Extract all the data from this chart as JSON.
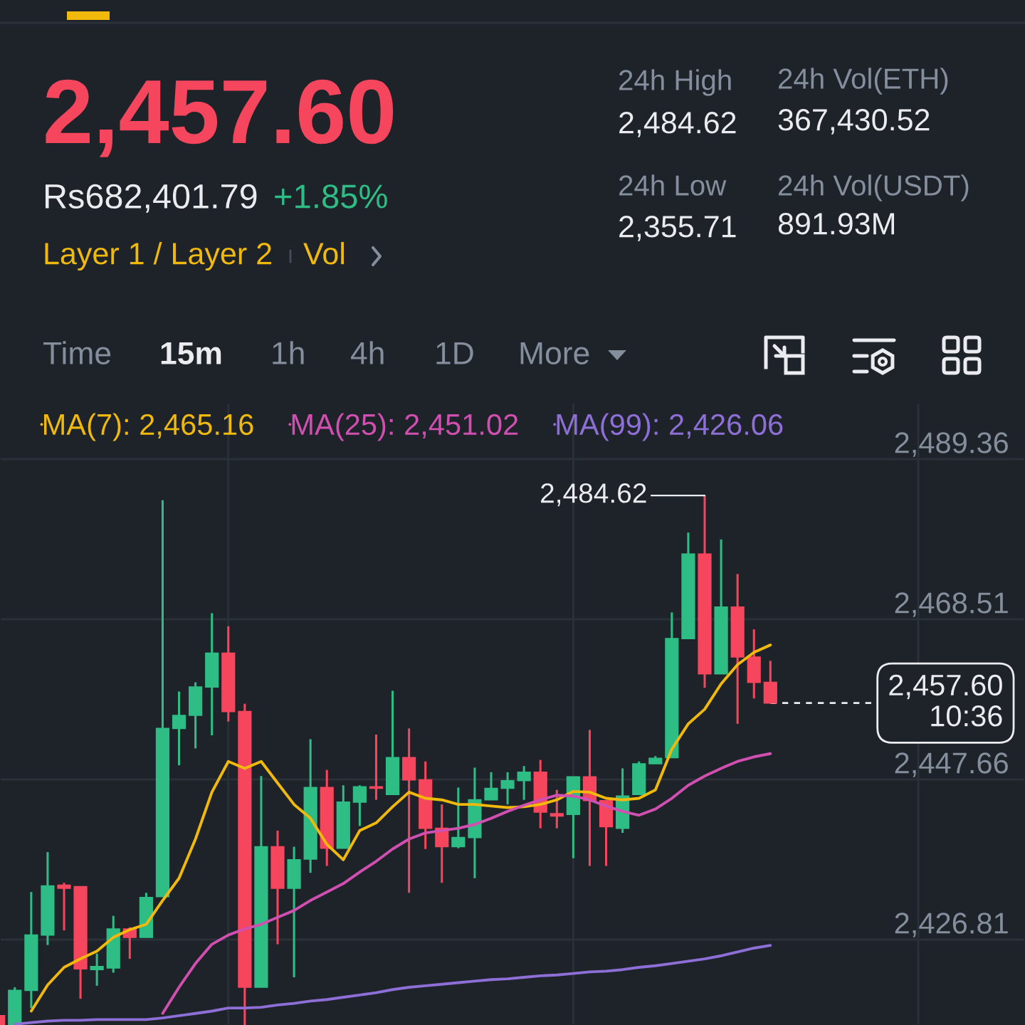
{
  "chart_data": {
    "type": "candlestick",
    "title": "2,457.60",
    "categories": [
      null,
      null,
      null,
      null,
      null,
      null,
      null,
      null,
      null,
      null,
      null,
      null,
      null,
      null,
      null,
      null,
      null,
      null,
      null,
      null,
      null,
      null,
      null,
      null,
      null,
      null,
      null,
      null,
      null,
      null,
      null,
      null,
      null,
      null,
      null,
      null,
      null,
      null,
      null,
      null,
      null,
      null,
      null,
      null,
      null,
      null,
      null,
      null
    ],
    "ohlc": [
      [
        2416.9,
        2416.9,
        2415.7,
        2415.7
      ],
      [
        2415.7,
        2420.6,
        2415.7,
        2420.2
      ],
      [
        2420.2,
        2433.0,
        2417.9,
        2427.4
      ],
      [
        2427.4,
        2438.2,
        2426.1,
        2433.8
      ],
      [
        2433.9,
        2434.2,
        2428.0,
        2433.5
      ],
      [
        2433.7,
        2433.7,
        2419.1,
        2423.0
      ],
      [
        2422.9,
        2425.0,
        2420.8,
        2423.3
      ],
      [
        2423.1,
        2429.9,
        2422.5,
        2428.2
      ],
      [
        2428.2,
        2428.4,
        2424.3,
        2427.1
      ],
      [
        2427.1,
        2432.9,
        2427.1,
        2432.3
      ],
      [
        2432.4,
        2484.0,
        2432.4,
        2454.3
      ],
      [
        2454.3,
        2459.1,
        2449.5,
        2456.0
      ],
      [
        2456.0,
        2460.3,
        2451.7,
        2459.7
      ],
      [
        2459.7,
        2469.3,
        2453.4,
        2464.1
      ],
      [
        2464.1,
        2467.6,
        2455.2,
        2456.5
      ],
      [
        2456.5,
        2457.5,
        2415.7,
        2420.6
      ],
      [
        2420.6,
        2448.1,
        2420.6,
        2438.9
      ],
      [
        2438.9,
        2441.0,
        2426.2,
        2433.5
      ],
      [
        2433.5,
        2438.9,
        2421.9,
        2437.2
      ],
      [
        2437.3,
        2452.9,
        2435.5,
        2446.6
      ],
      [
        2446.6,
        2448.9,
        2436.4,
        2438.7
      ],
      [
        2438.7,
        2446.9,
        2438.7,
        2444.7
      ],
      [
        2444.7,
        2446.9,
        2441.6,
        2446.7
      ],
      [
        2446.7,
        2453.5,
        2445.0,
        2446.5
      ],
      [
        2445.7,
        2459.2,
        2445.7,
        2450.5
      ],
      [
        2450.5,
        2454.3,
        2432.9,
        2447.6
      ],
      [
        2447.6,
        2450.0,
        2438.6,
        2441.3
      ],
      [
        2441.3,
        2444.4,
        2434.2,
        2438.9
      ],
      [
        2438.9,
        2446.6,
        2438.7,
        2440.1
      ],
      [
        2440.1,
        2449.2,
        2434.8,
        2445.0
      ],
      [
        2445.0,
        2448.6,
        2445.0,
        2446.5
      ],
      [
        2446.5,
        2448.6,
        2444.4,
        2447.5
      ],
      [
        2447.5,
        2449.4,
        2445.0,
        2448.6
      ],
      [
        2448.6,
        2450.2,
        2441.3,
        2443.4
      ],
      [
        2443.2,
        2446.3,
        2441.3,
        2442.9
      ],
      [
        2443.1,
        2448.0,
        2437.4,
        2448.0
      ],
      [
        2448.0,
        2454.1,
        2436.4,
        2444.9
      ],
      [
        2444.9,
        2444.9,
        2436.4,
        2441.5
      ],
      [
        2441.3,
        2449.1,
        2440.7,
        2445.5
      ],
      [
        2445.7,
        2450.0,
        2445.7,
        2449.7
      ],
      [
        2449.7,
        2450.7,
        2449.7,
        2450.4
      ],
      [
        2450.5,
        2469.4,
        2450.5,
        2466.0
      ],
      [
        2466.0,
        2479.8,
        2466.0,
        2477.0
      ],
      [
        2477.0,
        2484.62,
        2459.6,
        2461.4
      ],
      [
        2461.4,
        2478.9,
        2461.4,
        2470.1
      ],
      [
        2470.1,
        2474.4,
        2454.9,
        2463.6
      ],
      [
        2463.6,
        2467.2,
        2458.2,
        2460.3
      ],
      [
        2460.3,
        2463.1,
        2457.6,
        2457.6
      ]
    ],
    "colors": [
      "#f6465d",
      "#2ebd85",
      "#2ebd85",
      "#2ebd85",
      "#f6465d",
      "#f6465d",
      "#2ebd85",
      "#2ebd85",
      "#f6465d",
      "#2ebd85",
      "#2ebd85",
      "#2ebd85",
      "#2ebd85",
      "#2ebd85",
      "#f6465d",
      "#f6465d",
      "#2ebd85",
      "#f6465d",
      "#2ebd85",
      "#2ebd85",
      "#f6465d",
      "#2ebd85",
      "#2ebd85",
      "#f6465d",
      "#2ebd85",
      "#f6465d",
      "#f6465d",
      "#f6465d",
      "#2ebd85",
      "#2ebd85",
      "#2ebd85",
      "#2ebd85",
      "#2ebd85",
      "#f6465d",
      "#f6465d",
      "#2ebd85",
      "#f6465d",
      "#f6465d",
      "#2ebd85",
      "#2ebd85",
      "#2ebd85",
      "#2ebd85",
      "#2ebd85",
      "#f6465d",
      "#2ebd85",
      "#f6465d",
      "#f6465d",
      "#f6465d"
    ],
    "series": [
      {
        "name": "MA(7): 2,465.16",
        "type": "line",
        "color": "#f0b90b",
        "values": [
          null,
          null,
          2417.5,
          2420.9,
          2423.2,
          2424.3,
          2425.3,
          2427.1,
          2428.1,
          2428.8,
          2431.9,
          2434.8,
          2439.9,
          2446.0,
          2450.0,
          2449.1,
          2450.0,
          2447.2,
          2444.4,
          2442.6,
          2439.2,
          2437.2,
          2441.0,
          2442.0,
          2444.1,
          2446.0,
          2445.2,
          2445.0,
          2444.4,
          2444.4,
          2444.2,
          2444.0,
          2444.1,
          2444.4,
          2445.0,
          2446.1,
          2446.0,
          2445.2,
          2445.0,
          2445.2,
          2446.3,
          2451.6,
          2454.9,
          2456.8,
          2460.1,
          2462.6,
          2464.2,
          2465.16
        ]
      },
      {
        "name": "MA(25): 2,451.02",
        "type": "line",
        "color": "#d14fb0",
        "values": [
          null,
          null,
          null,
          null,
          null,
          null,
          null,
          null,
          null,
          null,
          2417.2,
          2420.6,
          2423.7,
          2426.2,
          2427.4,
          2428.2,
          2428.8,
          2429.7,
          2430.6,
          2431.9,
          2433.0,
          2434.1,
          2435.6,
          2437.0,
          2438.6,
          2439.9,
          2440.7,
          2441.0,
          2441.3,
          2441.8,
          2442.6,
          2443.5,
          2444.3,
          2445.0,
          2445.6,
          2445.5,
          2445.0,
          2444.2,
          2443.5,
          2443.0,
          2443.8,
          2445.2,
          2446.9,
          2448.1,
          2449.1,
          2450.0,
          2450.6,
          2451.02
        ]
      },
      {
        "name": "MA(99): 2,426.06",
        "type": "line",
        "color": "#8e6fd8",
        "values": [
          null,
          2415.8,
          2416.0,
          2416.2,
          2416.3,
          2416.3,
          2416.4,
          2416.4,
          2416.4,
          2416.4,
          2416.6,
          2416.9,
          2417.2,
          2417.5,
          2417.9,
          2417.9,
          2418.0,
          2418.3,
          2418.5,
          2418.8,
          2419.0,
          2419.3,
          2419.6,
          2419.9,
          2420.3,
          2420.6,
          2420.8,
          2421.0,
          2421.2,
          2421.4,
          2421.6,
          2421.7,
          2421.9,
          2422.1,
          2422.2,
          2422.4,
          2422.6,
          2422.7,
          2422.9,
          2423.2,
          2423.4,
          2423.7,
          2424.0,
          2424.3,
          2424.7,
          2425.2,
          2425.7,
          2426.06
        ]
      }
    ],
    "ylim": [
      2415.69,
      2496.68
    ],
    "yticks": [
      {
        "value": 2489.36,
        "label": "2,489.36"
      },
      {
        "value": 2468.51,
        "label": "2,468.51"
      },
      {
        "value": 2447.66,
        "label": "2,447.66"
      },
      {
        "value": 2426.81,
        "label": "2,426.81"
      }
    ],
    "grid": true,
    "legend": "top left",
    "tick_labels": "y",
    "ref_lines": [
      {
        "axis": "y",
        "value": 2457.6,
        "label": "2,457.60\n10:36",
        "line_style": "dashed",
        "color": "#eaecef"
      }
    ],
    "annotations": [
      "2,484.62",
      "Rs682,401.79",
      "+1.85%",
      "Layer 1 / Layer 2",
      "Vol",
      "24h High",
      "2,484.62",
      "24h Vol(ETH)",
      "367,430.52",
      "24h Low",
      "2,355.71",
      "24h Vol(USDT)",
      "891.93M",
      "Time",
      "15m",
      "1h",
      "4h",
      "1D",
      "More"
    ]
  }
}
